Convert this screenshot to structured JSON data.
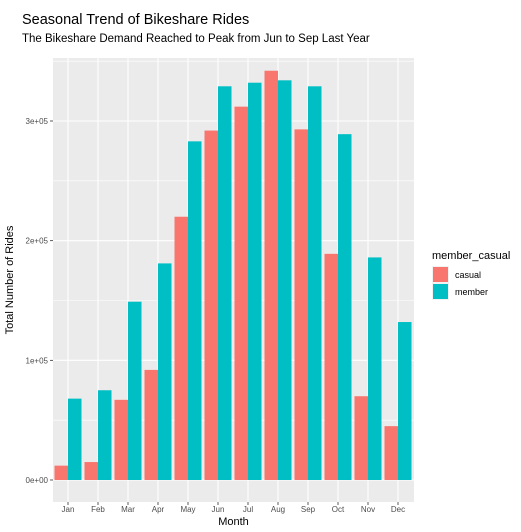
{
  "chart_data": {
    "type": "bar",
    "title": "Seasonal Trend of Bikeshare Rides",
    "subtitle": "The Bikeshare Demand Reached to Peak from Jun to Sep Last Year",
    "xlabel": "Month",
    "ylabel": "Total Number of Rides",
    "categories": [
      "Jan",
      "Feb",
      "Mar",
      "Apr",
      "May",
      "Jun",
      "Jul",
      "Aug",
      "Sep",
      "Oct",
      "Nov",
      "Dec"
    ],
    "ylim": [
      0,
      360000
    ],
    "yticks": [
      0,
      100000,
      200000,
      300000
    ],
    "ytick_labels": [
      "0e+00",
      "1e+05",
      "2e+05",
      "3e+05"
    ],
    "grid": true,
    "legend": {
      "title": "member_casual",
      "position": "right"
    },
    "series": [
      {
        "name": "casual",
        "color": "#F8766D",
        "values": [
          12000,
          15000,
          67000,
          92000,
          220000,
          292000,
          312000,
          342000,
          293000,
          189000,
          70000,
          45000
        ]
      },
      {
        "name": "member",
        "color": "#00BFC4",
        "values": [
          68000,
          75000,
          149000,
          181000,
          283000,
          329000,
          332000,
          334000,
          329000,
          289000,
          186000,
          132000
        ]
      }
    ]
  }
}
